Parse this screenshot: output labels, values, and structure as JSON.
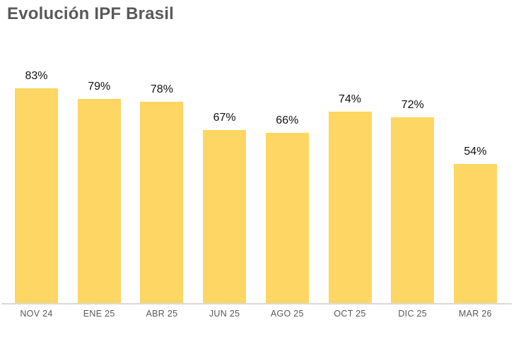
{
  "chart_data": {
    "type": "bar",
    "title": "Evolución IPF Brasil",
    "categories": [
      "NOV 24",
      "ENE 25",
      "ABR 25",
      "JUN 25",
      "AGO 25",
      "OCT 25",
      "DIC 25",
      "MAR 26"
    ],
    "values": [
      83,
      79,
      78,
      67,
      66,
      74,
      72,
      54
    ],
    "data_labels": [
      "83%",
      "79%",
      "78%",
      "67%",
      "66%",
      "74%",
      "72%",
      "54%"
    ],
    "xlabel": "",
    "ylabel": "",
    "ylim": [
      0,
      100
    ],
    "grid": false,
    "legend": false,
    "bar_color": "#FDD663",
    "data_label_color": "#111111",
    "category_label_color": "#595959",
    "title_color": "#595959",
    "axis_line_color": "#D9D9D9"
  }
}
